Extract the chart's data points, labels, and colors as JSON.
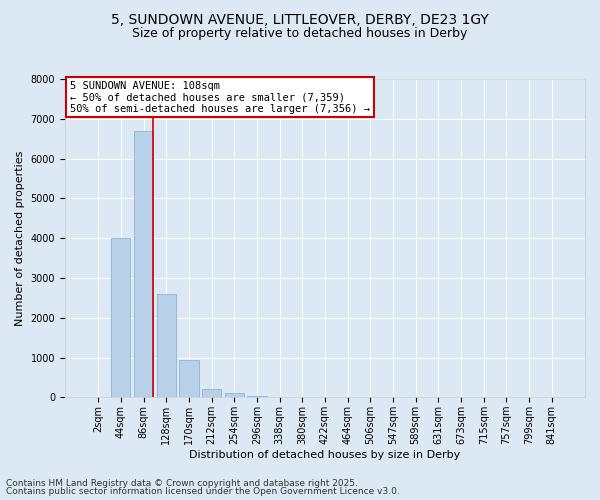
{
  "title_line1": "5, SUNDOWN AVENUE, LITTLEOVER, DERBY, DE23 1GY",
  "title_line2": "Size of property relative to detached houses in Derby",
  "xlabel": "Distribution of detached houses by size in Derby",
  "ylabel": "Number of detached properties",
  "categories": [
    "2sqm",
    "44sqm",
    "86sqm",
    "128sqm",
    "170sqm",
    "212sqm",
    "254sqm",
    "296sqm",
    "338sqm",
    "380sqm",
    "422sqm",
    "464sqm",
    "506sqm",
    "547sqm",
    "589sqm",
    "631sqm",
    "673sqm",
    "715sqm",
    "757sqm",
    "799sqm",
    "841sqm"
  ],
  "values": [
    5,
    4000,
    6700,
    2600,
    950,
    200,
    100,
    40,
    5,
    2,
    1,
    0,
    0,
    0,
    0,
    0,
    0,
    0,
    0,
    0,
    0
  ],
  "bar_color": "#b8d0e8",
  "bar_edge_color": "#8db4d6",
  "vline_color": "#cc0000",
  "annotation_text": "5 SUNDOWN AVENUE: 108sqm\n← 50% of detached houses are smaller (7,359)\n50% of semi-detached houses are larger (7,356) →",
  "annotation_box_edge": "#cc0000",
  "ylim": [
    0,
    8000
  ],
  "yticks": [
    0,
    1000,
    2000,
    3000,
    4000,
    5000,
    6000,
    7000,
    8000
  ],
  "background_color": "#dce9f5",
  "plot_bg_color": "#dce9f5",
  "footer_line1": "Contains HM Land Registry data © Crown copyright and database right 2025.",
  "footer_line2": "Contains public sector information licensed under the Open Government Licence v3.0.",
  "title_fontsize": 10,
  "subtitle_fontsize": 9,
  "axis_label_fontsize": 8,
  "tick_fontsize": 7,
  "annotation_fontsize": 7.5,
  "footer_fontsize": 6.5
}
